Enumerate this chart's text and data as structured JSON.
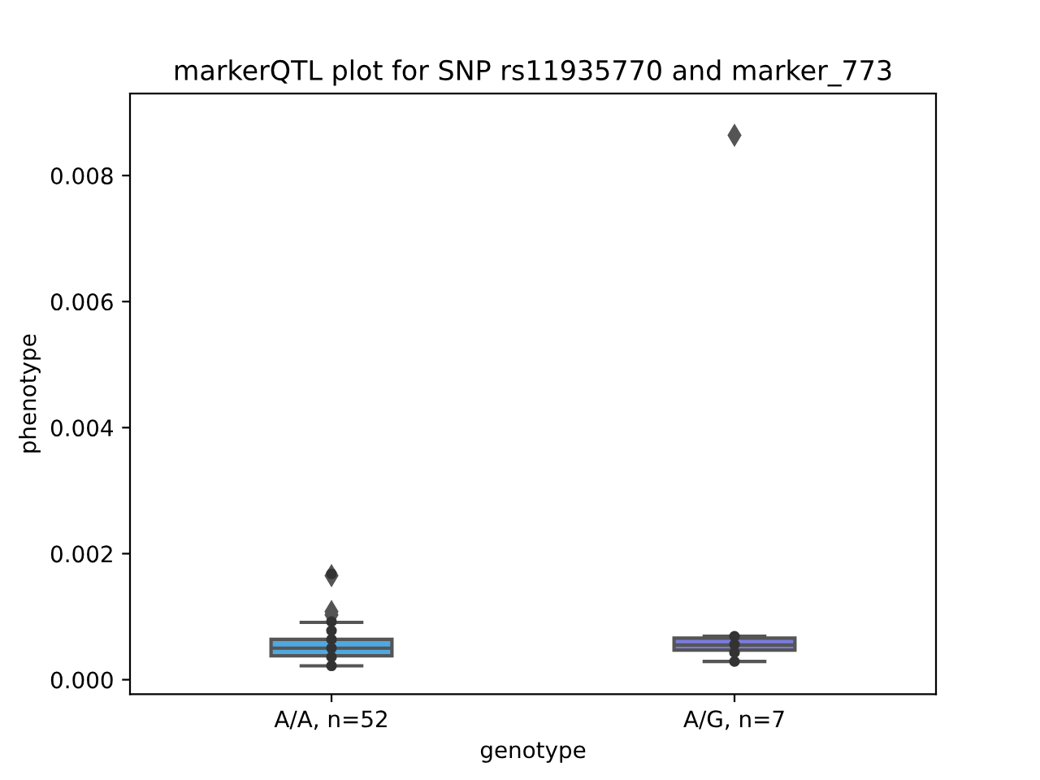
{
  "chart_data": {
    "type": "box",
    "title": "markerQTL plot for SNP rs11935770 and marker_773",
    "xlabel": "genotype",
    "ylabel": "phenotype",
    "categories": [
      "A/A, n=52",
      "A/G, n=7"
    ],
    "colors": [
      "#4fa8e0",
      "#7b7be0"
    ],
    "boxes": [
      {
        "low": 0.00022,
        "q1": 0.00038,
        "median": 0.0005,
        "q3": 0.00064,
        "high": 0.00091,
        "outliers": [
          0.00165,
          0.00108,
          0.00103
        ]
      },
      {
        "low": 0.00029,
        "q1": 0.00047,
        "median": 0.00055,
        "q3": 0.00066,
        "high": 0.00069,
        "outliers": [
          0.00864
        ]
      }
    ],
    "series": [
      {
        "type": "scatter",
        "color": "#333333",
        "x": [
          "A/A, n=52",
          "A/A, n=52",
          "A/A, n=52",
          "A/A, n=52",
          "A/A, n=52",
          "A/A, n=52",
          "A/A, n=52",
          "A/G, n=7",
          "A/G, n=7",
          "A/G, n=7",
          "A/G, n=7"
        ],
        "values": [
          0.00168,
          0.00092,
          0.00078,
          0.00064,
          0.0005,
          0.00036,
          0.00022,
          0.00069,
          0.00056,
          0.00043,
          0.00029
        ]
      }
    ],
    "ylim": [
      -0.00023,
      0.0093
    ],
    "yticks": [
      {
        "value": 0,
        "label": "0.000"
      },
      {
        "value": 0.002,
        "label": "0.002"
      },
      {
        "value": 0.004,
        "label": "0.004"
      },
      {
        "value": 0.006,
        "label": "0.006"
      },
      {
        "value": 0.008,
        "label": "0.008"
      }
    ],
    "grid": false,
    "legend": false,
    "marker": "circle"
  }
}
